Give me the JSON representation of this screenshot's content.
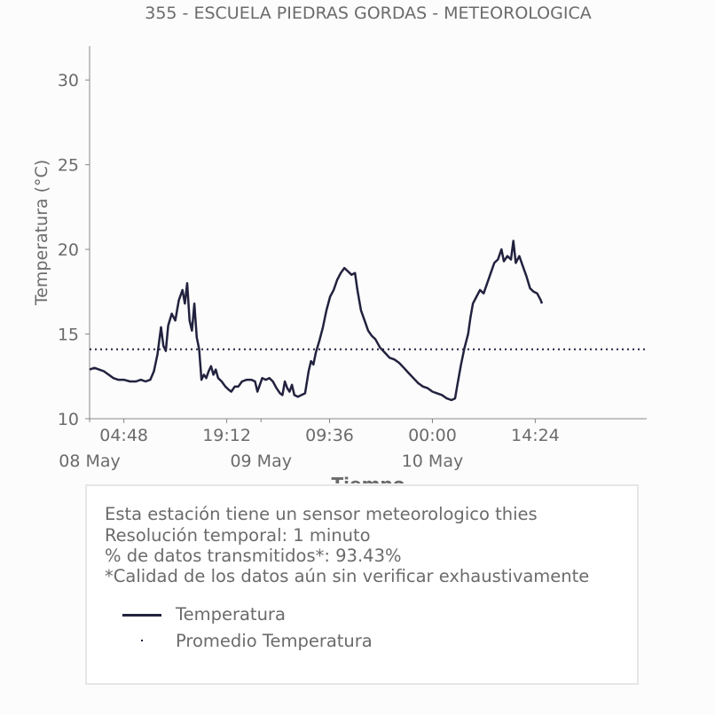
{
  "chart_data": {
    "type": "line",
    "title": "355 - ESCUELA PIEDRAS GORDAS - METEOROLOGICA",
    "xlabel": "Tiempo",
    "ylabel": "Temperatura (°C)",
    "ylim": [
      10,
      32
    ],
    "yticks": [
      10,
      15,
      20,
      25,
      30
    ],
    "xlim": [
      "2023-05-08 00:00",
      "2023-05-11 06:00"
    ],
    "xticks": [
      {
        "x": "2023-05-08 04:48",
        "label": "04:48"
      },
      {
        "x": "2023-05-08 19:12",
        "label": "19:12"
      },
      {
        "x": "2023-05-09 09:36",
        "label": "09:36"
      },
      {
        "x": "2023-05-10 00:00",
        "label": "00:00"
      },
      {
        "x": "2023-05-10 14:24",
        "label": "14:24"
      }
    ],
    "date_labels": [
      {
        "x": "2023-05-08 00:00",
        "label": "08 May"
      },
      {
        "x": "2023-05-09 00:00",
        "label": "09 May"
      },
      {
        "x": "2023-05-10 00:00",
        "label": "10 May"
      }
    ],
    "grid": false,
    "series": [
      {
        "name": "Temperatura",
        "color": "#22223f",
        "style": "solid",
        "points": [
          [
            "2023-05-08 00:00",
            12.9
          ],
          [
            "2023-05-08 00:40",
            13.0
          ],
          [
            "2023-05-08 01:20",
            12.9
          ],
          [
            "2023-05-08 02:00",
            12.8
          ],
          [
            "2023-05-08 02:40",
            12.6
          ],
          [
            "2023-05-08 03:20",
            12.4
          ],
          [
            "2023-05-08 04:00",
            12.3
          ],
          [
            "2023-05-08 04:48",
            12.3
          ],
          [
            "2023-05-08 05:40",
            12.2
          ],
          [
            "2023-05-08 06:30",
            12.2
          ],
          [
            "2023-05-08 07:10",
            12.3
          ],
          [
            "2023-05-08 07:50",
            12.2
          ],
          [
            "2023-05-08 08:30",
            12.3
          ],
          [
            "2023-05-08 09:00",
            12.8
          ],
          [
            "2023-05-08 09:30",
            13.8
          ],
          [
            "2023-05-08 10:00",
            15.4
          ],
          [
            "2023-05-08 10:20",
            14.3
          ],
          [
            "2023-05-08 10:40",
            14.0
          ],
          [
            "2023-05-08 11:00",
            15.5
          ],
          [
            "2023-05-08 11:30",
            16.2
          ],
          [
            "2023-05-08 12:00",
            15.8
          ],
          [
            "2023-05-08 12:30",
            17.0
          ],
          [
            "2023-05-08 13:00",
            17.6
          ],
          [
            "2023-05-08 13:20",
            16.8
          ],
          [
            "2023-05-08 13:40",
            18.0
          ],
          [
            "2023-05-08 14:00",
            15.8
          ],
          [
            "2023-05-08 14:20",
            15.2
          ],
          [
            "2023-05-08 14:40",
            16.8
          ],
          [
            "2023-05-08 15:00",
            14.8
          ],
          [
            "2023-05-08 15:20",
            14.1
          ],
          [
            "2023-05-08 15:40",
            12.3
          ],
          [
            "2023-05-08 16:00",
            12.6
          ],
          [
            "2023-05-08 16:20",
            12.4
          ],
          [
            "2023-05-08 16:40",
            12.8
          ],
          [
            "2023-05-08 17:00",
            13.1
          ],
          [
            "2023-05-08 17:20",
            12.6
          ],
          [
            "2023-05-08 17:40",
            12.9
          ],
          [
            "2023-05-08 18:00",
            12.4
          ],
          [
            "2023-05-08 18:30",
            12.2
          ],
          [
            "2023-05-08 19:00",
            11.9
          ],
          [
            "2023-05-08 19:30",
            11.7
          ],
          [
            "2023-05-08 19:50",
            11.6
          ],
          [
            "2023-05-08 20:20",
            11.9
          ],
          [
            "2023-05-08 20:50",
            11.9
          ],
          [
            "2023-05-08 21:20",
            12.2
          ],
          [
            "2023-05-08 22:00",
            12.3
          ],
          [
            "2023-05-08 22:40",
            12.3
          ],
          [
            "2023-05-08 23:10",
            12.2
          ],
          [
            "2023-05-08 23:30",
            11.6
          ],
          [
            "2023-05-08 23:50",
            12.0
          ],
          [
            "2023-05-09 00:10",
            12.4
          ],
          [
            "2023-05-09 00:40",
            12.3
          ],
          [
            "2023-05-09 01:10",
            12.4
          ],
          [
            "2023-05-09 01:40",
            12.2
          ],
          [
            "2023-05-09 02:10",
            11.8
          ],
          [
            "2023-05-09 02:40",
            11.5
          ],
          [
            "2023-05-09 03:00",
            11.4
          ],
          [
            "2023-05-09 03:20",
            12.2
          ],
          [
            "2023-05-09 03:40",
            11.8
          ],
          [
            "2023-05-09 04:00",
            11.6
          ],
          [
            "2023-05-09 04:20",
            12.0
          ],
          [
            "2023-05-09 04:40",
            11.4
          ],
          [
            "2023-05-09 05:10",
            11.3
          ],
          [
            "2023-05-09 05:40",
            11.4
          ],
          [
            "2023-05-09 06:10",
            11.5
          ],
          [
            "2023-05-09 06:40",
            12.8
          ],
          [
            "2023-05-09 07:00",
            13.4
          ],
          [
            "2023-05-09 07:20",
            13.2
          ],
          [
            "2023-05-09 07:40",
            13.9
          ],
          [
            "2023-05-09 08:10",
            14.6
          ],
          [
            "2023-05-09 08:40",
            15.4
          ],
          [
            "2023-05-09 09:10",
            16.4
          ],
          [
            "2023-05-09 09:40",
            17.2
          ],
          [
            "2023-05-09 10:10",
            17.6
          ],
          [
            "2023-05-09 10:40",
            18.2
          ],
          [
            "2023-05-09 11:10",
            18.6
          ],
          [
            "2023-05-09 11:40",
            18.9
          ],
          [
            "2023-05-09 12:10",
            18.7
          ],
          [
            "2023-05-09 12:40",
            18.5
          ],
          [
            "2023-05-09 13:10",
            18.6
          ],
          [
            "2023-05-09 13:30",
            17.6
          ],
          [
            "2023-05-09 14:00",
            16.4
          ],
          [
            "2023-05-09 14:30",
            15.8
          ],
          [
            "2023-05-09 15:00",
            15.2
          ],
          [
            "2023-05-09 15:30",
            14.9
          ],
          [
            "2023-05-09 16:00",
            14.7
          ],
          [
            "2023-05-09 16:40",
            14.2
          ],
          [
            "2023-05-09 17:20",
            13.9
          ],
          [
            "2023-05-09 18:00",
            13.6
          ],
          [
            "2023-05-09 18:40",
            13.5
          ],
          [
            "2023-05-09 19:20",
            13.3
          ],
          [
            "2023-05-09 20:00",
            13.0
          ],
          [
            "2023-05-09 20:40",
            12.7
          ],
          [
            "2023-05-09 21:20",
            12.4
          ],
          [
            "2023-05-09 22:00",
            12.1
          ],
          [
            "2023-05-09 22:40",
            11.9
          ],
          [
            "2023-05-09 23:20",
            11.8
          ],
          [
            "2023-05-10 00:00",
            11.6
          ],
          [
            "2023-05-10 00:40",
            11.5
          ],
          [
            "2023-05-10 01:20",
            11.4
          ],
          [
            "2023-05-10 02:00",
            11.2
          ],
          [
            "2023-05-10 02:40",
            11.1
          ],
          [
            "2023-05-10 03:10",
            11.2
          ],
          [
            "2023-05-10 03:30",
            12.0
          ],
          [
            "2023-05-10 04:00",
            13.2
          ],
          [
            "2023-05-10 04:30",
            14.2
          ],
          [
            "2023-05-10 05:00",
            15.0
          ],
          [
            "2023-05-10 05:20",
            16.0
          ],
          [
            "2023-05-10 05:40",
            16.8
          ],
          [
            "2023-05-10 06:10",
            17.2
          ],
          [
            "2023-05-10 06:40",
            17.6
          ],
          [
            "2023-05-10 07:10",
            17.4
          ],
          [
            "2023-05-10 07:40",
            18.0
          ],
          [
            "2023-05-10 08:10",
            18.6
          ],
          [
            "2023-05-10 08:40",
            19.2
          ],
          [
            "2023-05-10 09:10",
            19.4
          ],
          [
            "2023-05-10 09:40",
            20.0
          ],
          [
            "2023-05-10 10:00",
            19.3
          ],
          [
            "2023-05-10 10:30",
            19.6
          ],
          [
            "2023-05-10 11:00",
            19.4
          ],
          [
            "2023-05-10 11:20",
            20.5
          ],
          [
            "2023-05-10 11:40",
            19.2
          ],
          [
            "2023-05-10 12:10",
            19.6
          ],
          [
            "2023-05-10 12:40",
            19.0
          ],
          [
            "2023-05-10 13:10",
            18.4
          ],
          [
            "2023-05-10 13:40",
            17.7
          ],
          [
            "2023-05-10 14:10",
            17.5
          ],
          [
            "2023-05-10 14:40",
            17.4
          ],
          [
            "2023-05-10 15:10",
            17.0
          ],
          [
            "2023-05-10 15:20",
            16.8
          ]
        ]
      },
      {
        "name": "Promedio Temperatura",
        "color": "#22223f",
        "style": "dotted",
        "value": 14.1
      }
    ]
  },
  "info": {
    "lines": [
      "Esta estación tiene un sensor meteorologico thies",
      "Resolución temporal: 1 minuto",
      "% de datos transmitidos*: 93.43%",
      "*Calidad de los datos aún sin verificar exhaustivamente"
    ]
  },
  "legend": {
    "items": [
      {
        "label": "Temperatura",
        "marker": "line"
      },
      {
        "label": "Promedio Temperatura",
        "marker": "dot"
      }
    ]
  }
}
